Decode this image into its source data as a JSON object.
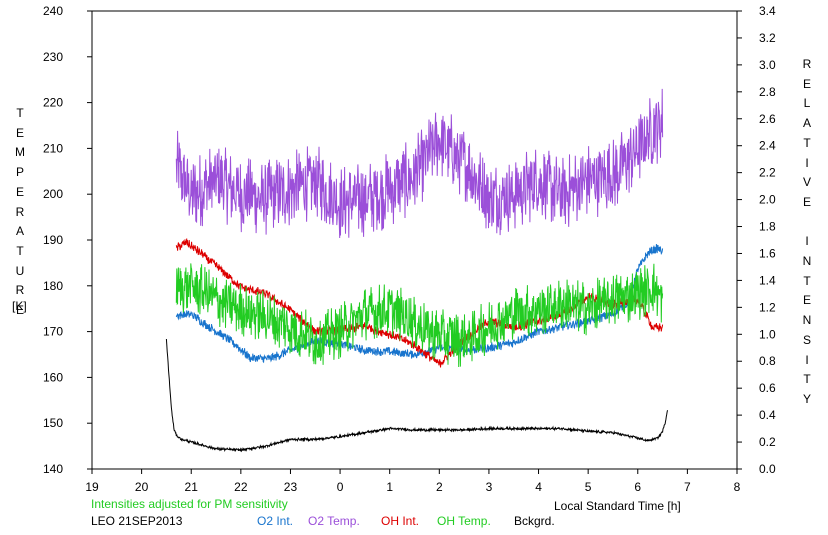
{
  "chart_data": {
    "type": "line",
    "xlabel": "Local Standard Time [h]",
    "x_ticks": [
      "19",
      "20",
      "21",
      "22",
      "23",
      "0",
      "1",
      "2",
      "3",
      "4",
      "5",
      "6",
      "7",
      "8"
    ],
    "y_left": {
      "label_chars": [
        "T",
        "E",
        "M",
        "P",
        "E",
        "R",
        "A",
        "T",
        "U",
        "R",
        "E"
      ],
      "unit": "[K]",
      "ticks": [
        "140",
        "150",
        "160",
        "170",
        "180",
        "190",
        "200",
        "210",
        "220",
        "230",
        "240"
      ],
      "ylim": [
        140,
        240
      ]
    },
    "y_right": {
      "label_chars": [
        "R",
        "E",
        "L",
        "A",
        "T",
        "I",
        "V",
        "E",
        "",
        "I",
        "N",
        "T",
        "E",
        "N",
        "S",
        "I",
        "T",
        "Y"
      ],
      "ticks": [
        "0.0",
        "0.2",
        "0.4",
        "0.6",
        "0.8",
        "1.0",
        "1.2",
        "1.4",
        "1.6",
        "1.8",
        "2.0",
        "2.2",
        "2.4",
        "2.6",
        "2.8",
        "3.0",
        "3.2",
        "3.4"
      ],
      "ylim": [
        0.0,
        3.4
      ]
    },
    "note": "Intensities adjusted for PM sensitivity",
    "station": "LEO 21SEP2013",
    "legend": [
      {
        "name": "O2 Int.",
        "color": "#1874cd"
      },
      {
        "name": "O2 Temp.",
        "color": "#9b4fd9"
      },
      {
        "name": "OH Int.",
        "color": "#dd0000"
      },
      {
        "name": "OH Temp.",
        "color": "#22cc22"
      },
      {
        "name": "Bckgrd.",
        "color": "#000000"
      }
    ],
    "series": [
      {
        "name": "O2 Temp.",
        "axis": "left",
        "color": "#9b4fd9",
        "noise": 7,
        "x": [
          20.7,
          21.0,
          21.5,
          22.0,
          22.5,
          23.0,
          23.5,
          24.0,
          24.5,
          25.0,
          25.5,
          26.0,
          26.5,
          27.0,
          27.5,
          28.0,
          28.5,
          29.0,
          29.5,
          30.0,
          30.3,
          30.5
        ],
        "y": [
          206,
          200,
          203,
          200,
          199,
          201,
          203,
          198,
          199,
          201,
          204,
          212,
          207,
          199,
          200,
          203,
          200,
          203,
          204,
          210,
          214,
          216
        ]
      },
      {
        "name": "O2 Int.",
        "axis": "right",
        "color": "#1874cd",
        "noise": 0.03,
        "x": [
          20.7,
          21.0,
          21.3,
          21.6,
          21.9,
          22.2,
          22.6,
          23.0,
          23.5,
          24.0,
          24.5,
          25.0,
          25.5,
          26.0,
          26.5,
          27.0,
          27.5,
          28.0,
          28.5,
          29.0,
          29.5,
          29.8,
          30.0,
          30.2,
          30.4,
          30.5
        ],
        "y": [
          1.14,
          1.15,
          1.07,
          1.0,
          0.92,
          0.82,
          0.82,
          0.88,
          0.95,
          0.93,
          0.88,
          0.87,
          0.85,
          0.9,
          0.88,
          0.9,
          0.94,
          1.02,
          1.06,
          1.1,
          1.15,
          1.23,
          1.48,
          1.6,
          1.64,
          1.62
        ]
      },
      {
        "name": "OH Int.",
        "axis": "right",
        "color": "#dd0000",
        "noise": 0.03,
        "x": [
          20.7,
          20.9,
          21.2,
          21.6,
          22.0,
          22.5,
          23.0,
          23.5,
          24.0,
          24.5,
          25.0,
          25.5,
          26.0,
          26.5,
          27.0,
          27.5,
          28.0,
          28.5,
          29.0,
          29.5,
          30.0,
          30.3,
          30.5
        ],
        "y": [
          1.64,
          1.68,
          1.6,
          1.48,
          1.35,
          1.3,
          1.18,
          1.02,
          1.03,
          1.06,
          1.0,
          0.92,
          0.78,
          0.96,
          1.1,
          1.05,
          1.1,
          1.15,
          1.28,
          1.22,
          1.26,
          1.05,
          1.05
        ]
      },
      {
        "name": "OH Temp.",
        "axis": "left",
        "color": "#22cc22",
        "noise": 5,
        "x": [
          20.7,
          21.0,
          21.5,
          22.0,
          22.5,
          23.0,
          23.5,
          24.0,
          24.5,
          25.0,
          25.5,
          26.0,
          26.5,
          27.0,
          27.5,
          28.0,
          28.5,
          29.0,
          29.5,
          30.0,
          30.3,
          30.5
        ],
        "y": [
          179,
          180,
          177,
          175,
          173,
          171,
          168,
          170,
          174,
          175,
          172,
          169,
          168,
          171,
          174,
          175,
          176,
          175,
          177,
          178,
          180,
          177
        ]
      },
      {
        "name": "Bckgrd.",
        "axis": "right",
        "color": "#000000",
        "noise": 0.008,
        "x": [
          20.5,
          20.55,
          20.6,
          20.65,
          20.7,
          20.8,
          21.0,
          21.5,
          22.0,
          22.5,
          23.0,
          23.5,
          24.0,
          24.5,
          25.0,
          25.5,
          26.0,
          26.5,
          27.0,
          27.5,
          28.0,
          28.5,
          29.0,
          29.5,
          30.0,
          30.2,
          30.4,
          30.5,
          30.55,
          30.6
        ],
        "y": [
          0.96,
          0.7,
          0.45,
          0.3,
          0.25,
          0.22,
          0.2,
          0.15,
          0.14,
          0.17,
          0.22,
          0.22,
          0.24,
          0.27,
          0.3,
          0.29,
          0.29,
          0.29,
          0.3,
          0.3,
          0.3,
          0.3,
          0.28,
          0.27,
          0.23,
          0.21,
          0.23,
          0.28,
          0.34,
          0.44
        ]
      }
    ]
  }
}
